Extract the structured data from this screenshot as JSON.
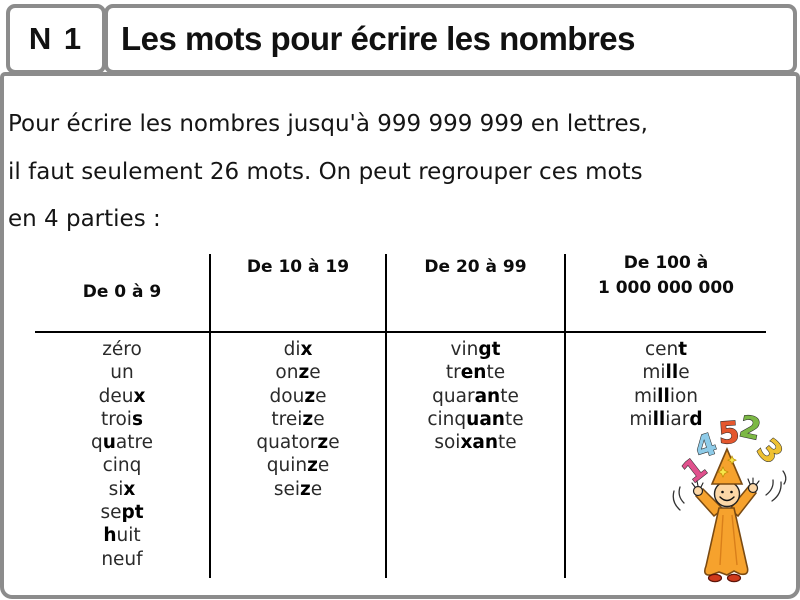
{
  "header": {
    "badge": "N 1",
    "title": "Les mots pour écrire les nombres"
  },
  "intro": {
    "lines": [
      "Pour écrire les nombres jusqu'à 999 999 999 en lettres,",
      "il faut seulement 26 mots. On peut regrouper ces mots",
      "en 4 parties :"
    ]
  },
  "table": {
    "columns": [
      {
        "header": "De 0 à 9",
        "words": [
          "zéro",
          "un",
          "deu**x**",
          "troi**s**",
          "q**u**atre",
          "cinq",
          "si**x**",
          "se**pt**",
          "**h**uit",
          "neuf"
        ]
      },
      {
        "header": "De 10 à 19",
        "words": [
          "di**x**",
          "on**z**e",
          "dou**z**e",
          "trei**z**e",
          "quator**z**e",
          "quin**z**e",
          "sei**z**e"
        ]
      },
      {
        "header": "De 20 à 99",
        "words": [
          "vin**gt**",
          "tr**en**te",
          "quar**an**te",
          "cinq**uan**te",
          "soi**xan**te"
        ]
      },
      {
        "header": "De 100 à\n1 000 000 000",
        "words": [
          "cen**t**",
          "mi**ll**e",
          "mi**ll**ion",
          "mi**ll**iar**d**"
        ]
      }
    ]
  },
  "illustration": {
    "name": "number-juggler-wizard",
    "numbers": [
      {
        "value": "1",
        "color": "#e0518d"
      },
      {
        "value": "4",
        "color": "#8ecbe8"
      },
      {
        "value": "5",
        "color": "#e4572e"
      },
      {
        "value": "2",
        "color": "#7cb845"
      },
      {
        "value": "3",
        "color": "#eec132"
      }
    ]
  },
  "colors": {
    "border": "#8c8c8c",
    "rule": "#000000"
  }
}
